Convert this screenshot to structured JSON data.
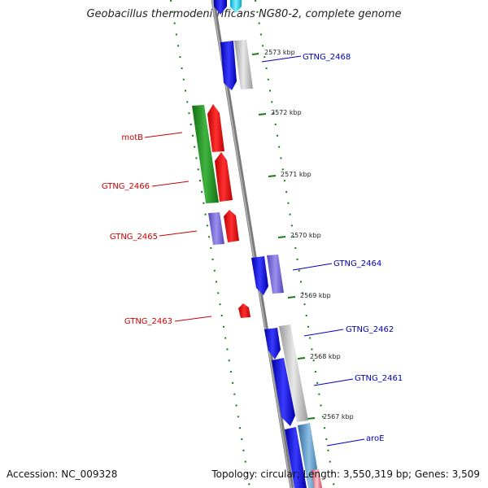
{
  "title": "Geobacillus thermodenitrificans NG80-2, complete genome",
  "accession": "Accession: NC_009328",
  "topology": "Topology: circular; Length: 3,550,319 bp; Genes: 3,509",
  "colors": {
    "forward_label": "#cc0000",
    "reverse_label": "#0000bb",
    "tick": "#1a7a1a",
    "backbone": "#808080"
  },
  "kbp_ticks": [
    "2573 kbp",
    "2572 kbp",
    "2571 kbp",
    "2570 kbp",
    "2569 kbp",
    "2568 kbp",
    "2567 kbp"
  ],
  "genes_forward": [
    {
      "id": "motB",
      "label": "motB"
    },
    {
      "id": "GTNG_2466",
      "label": "GTNG_2466"
    },
    {
      "id": "GTNG_2465",
      "label": "GTNG_2465"
    },
    {
      "id": "GTNG_2463",
      "label": "GTNG_2463"
    }
  ],
  "genes_reverse": [
    {
      "id": "GTNG_2468",
      "label": "GTNG_2468"
    },
    {
      "id": "GTNG_2464",
      "label": "GTNG_2464"
    },
    {
      "id": "GTNG_2462",
      "label": "GTNG_2462"
    },
    {
      "id": "GTNG_2461",
      "label": "GTNG_2461"
    },
    {
      "id": "aroE",
      "label": "aroE"
    }
  ]
}
